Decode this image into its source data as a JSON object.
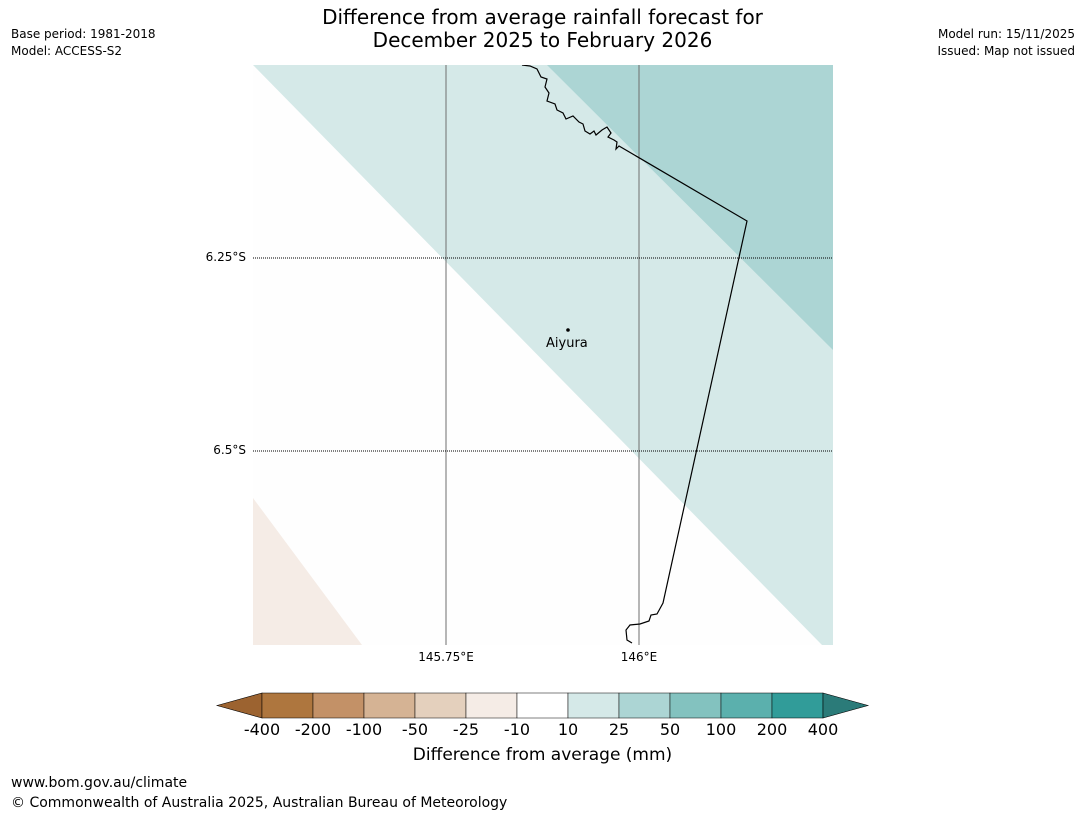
{
  "header": {
    "base_period": "Base period: 1981-2018",
    "model": "Model: ACCESS-S2",
    "title_line1": "Difference from average rainfall forecast for",
    "title_line2": "December 2025 to February 2026",
    "model_run": "Model run: 15/11/2025",
    "issued": "Issued: Map not issued"
  },
  "map": {
    "lat_labels": [
      "6.25°S",
      "6.5°S"
    ],
    "lon_labels": [
      "145.75°E",
      "146°E"
    ],
    "place": {
      "name": "Aiyura"
    },
    "colors": {
      "class_10_25": "#d5e9e8",
      "class_25_50": "#acd5d4",
      "class_m25_m10": "#f5ece6"
    }
  },
  "colorbar": {
    "tick_labels": [
      "-400",
      "-200",
      "-100",
      "-50",
      "-25",
      "-10",
      "10",
      "25",
      "50",
      "100",
      "200",
      "400"
    ],
    "colors": [
      "#9c6330",
      "#ae763e",
      "#c39167",
      "#d5b394",
      "#e4d0bd",
      "#f5ece6",
      "#ffffff",
      "#d5e9e8",
      "#acd5d4",
      "#83c2bf",
      "#5bb0ad",
      "#319c99",
      "#2b7b79"
    ],
    "label": "Difference from average (mm)"
  },
  "footer": {
    "url": "www.bom.gov.au/climate",
    "copyright": "© Commonwealth of Australia 2025, Australian Bureau of Meteorology"
  }
}
